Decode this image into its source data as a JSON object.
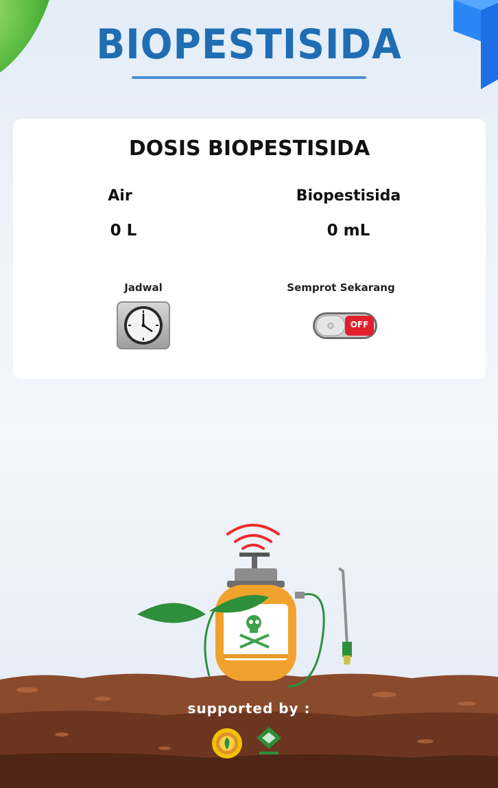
{
  "header": {
    "title": "BIOPESTISIDA"
  },
  "card": {
    "title": "DOSIS BIOPESTISIDA",
    "air": {
      "label": "Air",
      "value": "0 L"
    },
    "biopestisida": {
      "label": "Biopestisida",
      "value": "0 mL"
    },
    "jadwal": {
      "label": "Jadwal",
      "icon": "clock-icon"
    },
    "semprot": {
      "label": "Semprot Sekarang",
      "state": "OFF"
    }
  },
  "footer": {
    "supported_text": "supported by :"
  },
  "colors": {
    "title_blue": "#1f6eb3",
    "toggle_red": "#e0202a",
    "soil_brown": "#8a4a2c"
  }
}
